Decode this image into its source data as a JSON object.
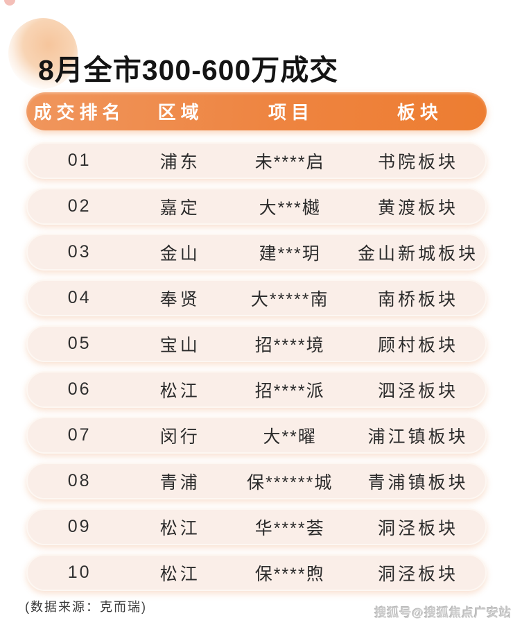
{
  "page": {
    "title": "8月全市300-600万成交",
    "footer_note": "(数据来源：克而瑞)",
    "watermark": "搜狐号@搜狐焦点广安站"
  },
  "colors": {
    "header_gradient_start": "#f0965d",
    "header_gradient_end": "#ed7d31",
    "row_background": "#faeee8",
    "title_color": "#141414",
    "body_text": "#2b2b2b",
    "watermark_gray": "#c6c6c6"
  },
  "table": {
    "columns": [
      "成交排名",
      "区域",
      "项目",
      "板块"
    ],
    "rows": [
      {
        "rank": "01",
        "region": "浦东",
        "project": "未****启",
        "plate": "书院板块"
      },
      {
        "rank": "02",
        "region": "嘉定",
        "project": "大***樾",
        "plate": "黄渡板块"
      },
      {
        "rank": "03",
        "region": "金山",
        "project": "建***玥",
        "plate": "金山新城板块"
      },
      {
        "rank": "04",
        "region": "奉贤",
        "project": "大*****南",
        "plate": "南桥板块"
      },
      {
        "rank": "05",
        "region": "宝山",
        "project": "招****境",
        "plate": "顾村板块"
      },
      {
        "rank": "06",
        "region": "松江",
        "project": "招****派",
        "plate": "泗泾板块"
      },
      {
        "rank": "07",
        "region": "闵行",
        "project": "大**曜",
        "plate": "浦江镇板块"
      },
      {
        "rank": "08",
        "region": "青浦",
        "project": "保******城",
        "plate": "青浦镇板块"
      },
      {
        "rank": "09",
        "region": "松江",
        "project": "华****荟",
        "plate": "洞泾板块"
      },
      {
        "rank": "10",
        "region": "松江",
        "project": "保****煦",
        "plate": "洞泾板块"
      }
    ]
  }
}
